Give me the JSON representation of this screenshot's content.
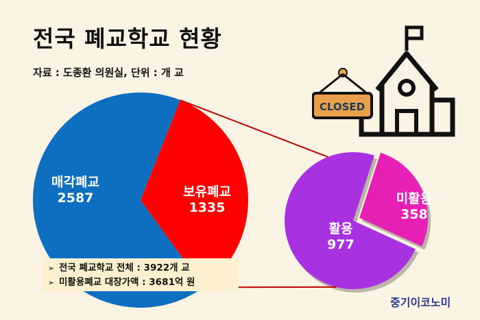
{
  "title": "전국 폐교학교 현황",
  "source": "자료 : 도종환 의원실, 단위 : 개 교",
  "notes": [
    "전국 폐교학교 전체 : 3922개 교",
    "미활용폐교 대장가액 : 3681억 원"
  ],
  "brand": "중기이코노미",
  "icon": {
    "name": "closed-school-icon",
    "sign_text": "CLOSED"
  },
  "colors": {
    "blue": "#0e6fc0",
    "red": "#ff0000",
    "purple": "#a832e0",
    "magenta": "#e620b4",
    "connector": "#c00000",
    "background": "#fbf3e3"
  },
  "chart_data": [
    {
      "type": "pie",
      "categories": [
        "매각폐교",
        "보유폐교"
      ],
      "values": [
        2587,
        1335
      ],
      "labels": [
        "매각폐교\n2587",
        "보유폐교\n1335"
      ]
    },
    {
      "type": "pie",
      "categories": [
        "활용",
        "미활용"
      ],
      "values": [
        977,
        358
      ],
      "labels": [
        "활용\n977",
        "미활용\n358"
      ]
    }
  ]
}
